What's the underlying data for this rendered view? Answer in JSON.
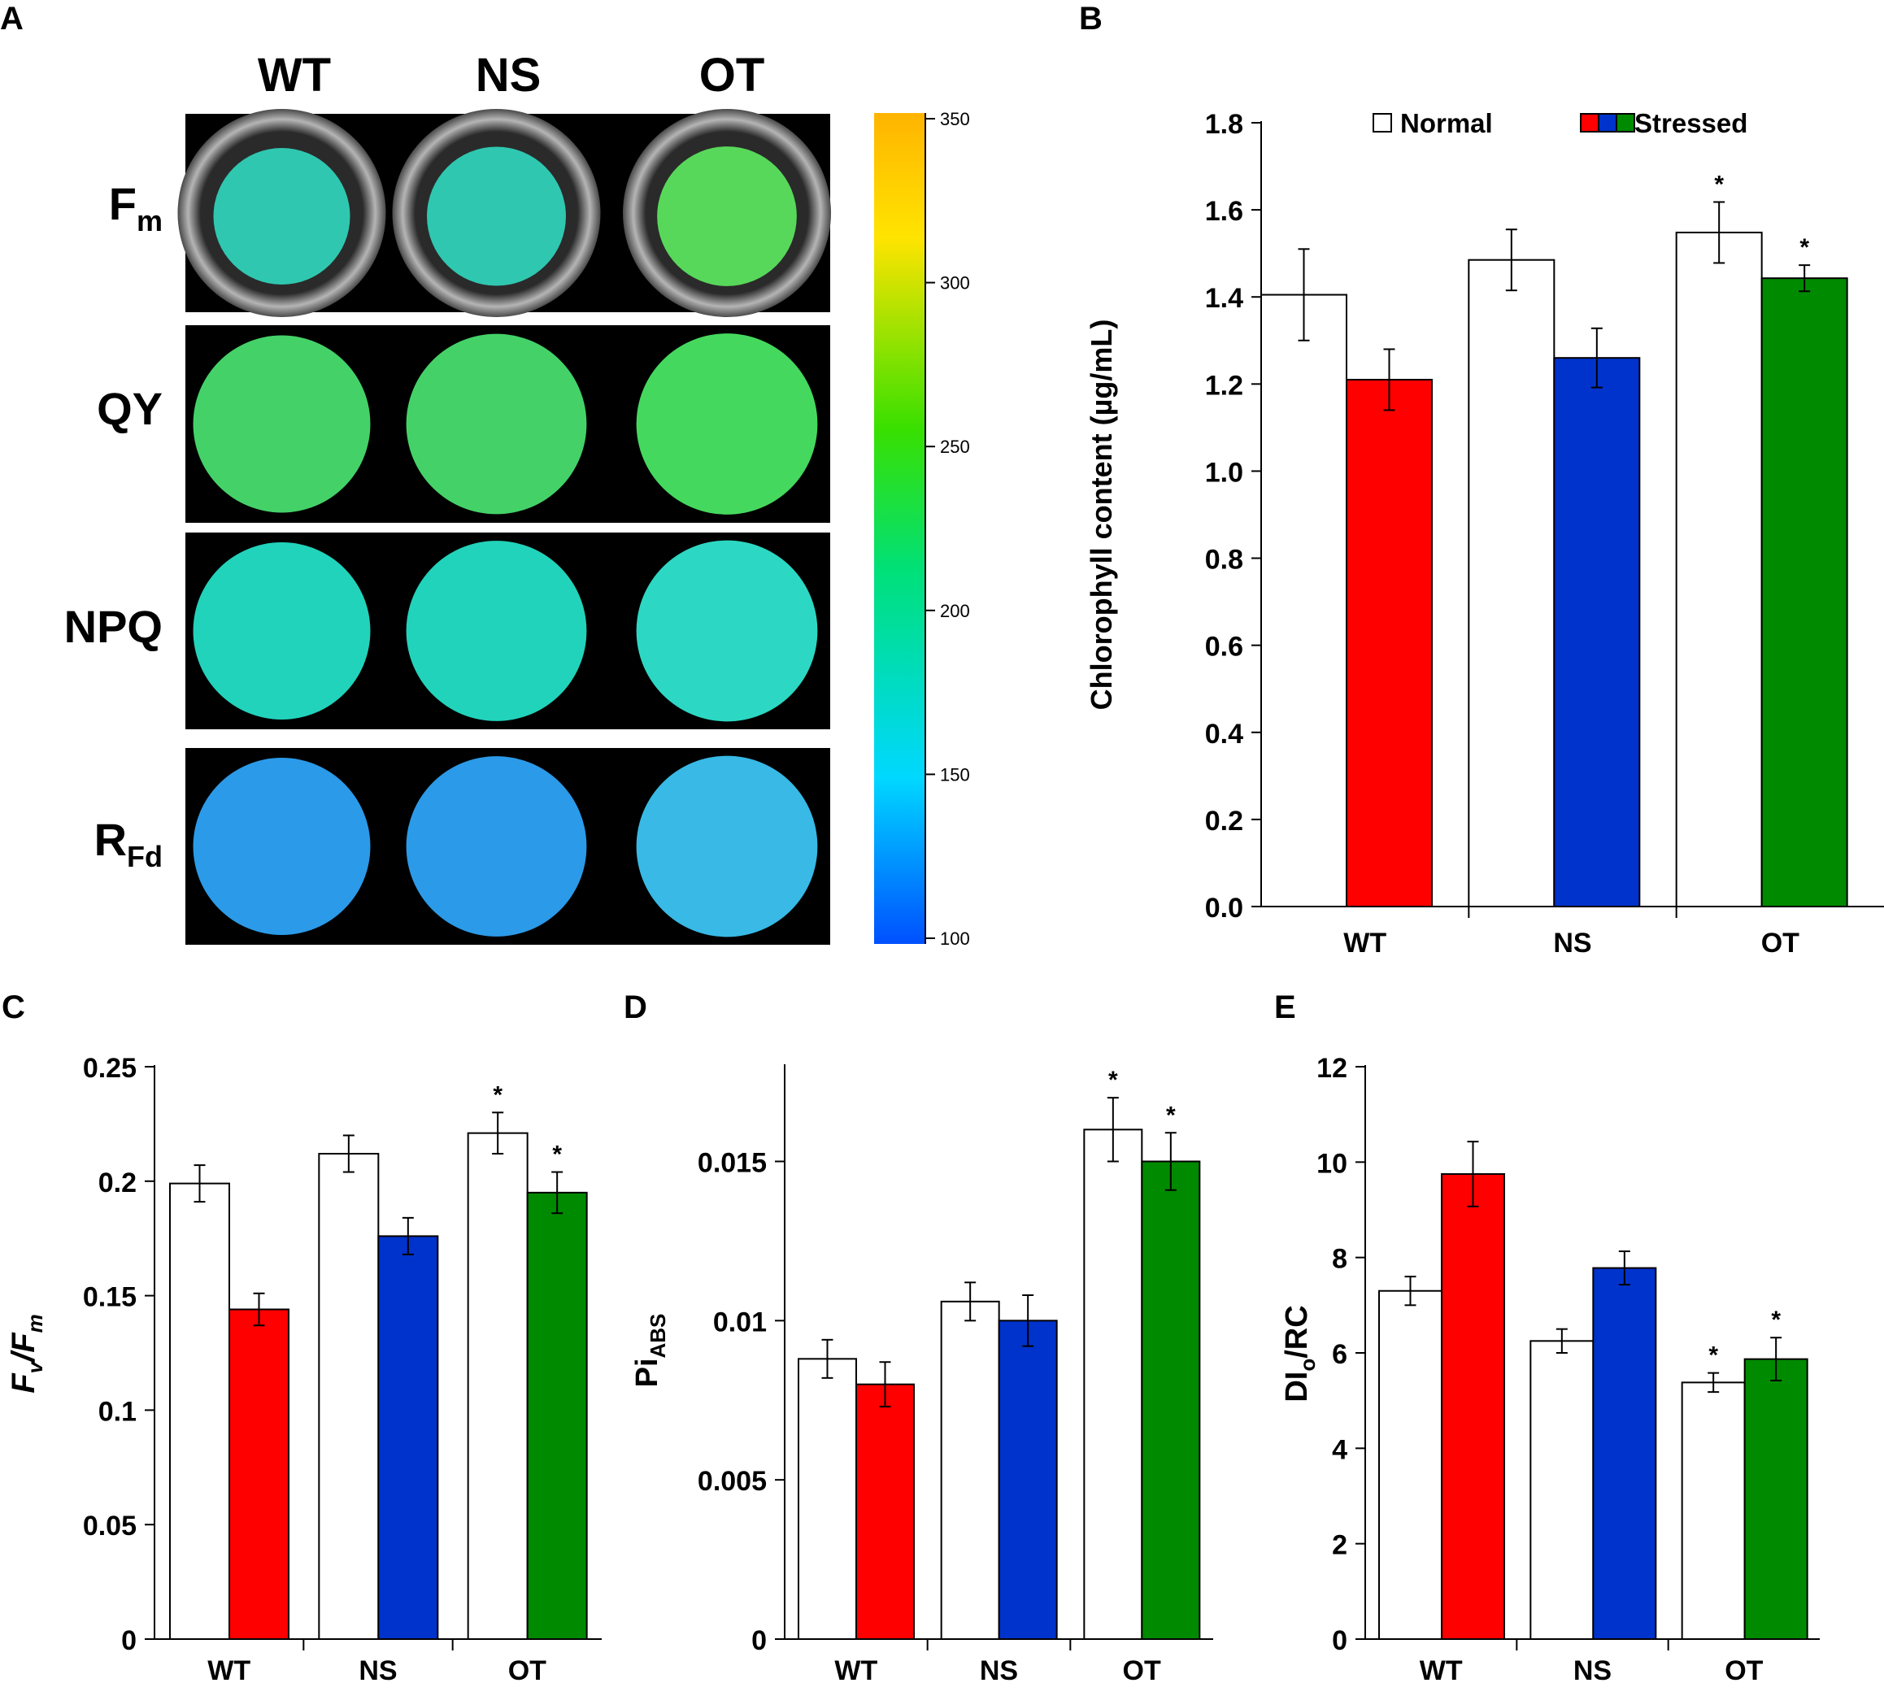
{
  "panel_labels": {
    "a": "A",
    "b": "B",
    "c": "C",
    "d": "D",
    "e": "E"
  },
  "colors": {
    "normal": "#ffffff",
    "wt_stressed": "#ff0000",
    "ns_stressed": "#0033cc",
    "ot_stressed": "#008a00",
    "axis": "#000000",
    "img_bg": "#000000",
    "well_rim": "#8a8a8a"
  },
  "image_panel": {
    "columns": [
      "WT",
      "NS",
      "OT"
    ],
    "rows": [
      {
        "main": "F",
        "sub": "m",
        "fills": [
          "#2fc7b0",
          "#2fc7b0",
          "#58d85a"
        ]
      },
      {
        "main": "QY",
        "sub": "",
        "fills": [
          "#44d268",
          "#44d268",
          "#45d85e"
        ]
      },
      {
        "main": "NPQ",
        "sub": "",
        "fills": [
          "#22d3bb",
          "#22d3bb",
          "#2cd8c3"
        ]
      },
      {
        "main": "R",
        "sub": "Fd",
        "fills": [
          "#2b9ae8",
          "#2b9ae8",
          "#38b9e6"
        ]
      }
    ],
    "colorbar": {
      "ticks": [
        "350",
        "300",
        "250",
        "200",
        "150",
        "100"
      ],
      "min": 100,
      "max": 350,
      "stops": [
        "#0050ff",
        "#00d8ff",
        "#00e078",
        "#39e000",
        "#ffe400",
        "#ffb400"
      ]
    }
  },
  "chart_data": [
    {
      "id": "B",
      "type": "bar",
      "title": "",
      "categories": [
        "WT",
        "NS",
        "OT"
      ],
      "series": [
        {
          "name": "Normal",
          "values": [
            1.405,
            1.485,
            1.548
          ],
          "errors": [
            0.105,
            0.07,
            0.07
          ],
          "sig": [
            false,
            false,
            true
          ]
        },
        {
          "name": "Stressed",
          "values": [
            1.21,
            1.26,
            1.443
          ],
          "errors": [
            0.07,
            0.068,
            0.03
          ],
          "sig": [
            false,
            false,
            true
          ]
        }
      ],
      "ylabel": "Chlorophyll content (µg/mL)",
      "ylim": [
        0,
        1.8
      ],
      "yticks": [
        0,
        0.2,
        0.4,
        0.6,
        0.8,
        1.0,
        1.2,
        1.4,
        1.6,
        1.8
      ],
      "ytick_labels": [
        "0.0",
        "0.2",
        "0.4",
        "0.6",
        "0.8",
        "1.0",
        "1.2",
        "1.4",
        "1.6",
        "1.8"
      ],
      "legend": {
        "normal_label": "Normal",
        "stressed_label": "Stressed",
        "position": "top"
      },
      "significance_mark": "*"
    },
    {
      "id": "C",
      "type": "bar",
      "categories": [
        "WT",
        "NS",
        "OT"
      ],
      "series": [
        {
          "name": "Normal",
          "values": [
            0.199,
            0.212,
            0.221
          ],
          "errors": [
            0.008,
            0.008,
            0.009
          ],
          "sig": [
            false,
            false,
            true
          ]
        },
        {
          "name": "Stressed",
          "values": [
            0.144,
            0.176,
            0.195
          ],
          "errors": [
            0.007,
            0.008,
            0.009
          ],
          "sig": [
            false,
            false,
            true
          ]
        }
      ],
      "ylabel": {
        "main1": "F",
        "sub1": "v",
        "sep": "/",
        "main2": "F",
        "sub2": "m"
      },
      "ylim": [
        0,
        0.25
      ],
      "yticks": [
        0,
        0.05,
        0.1,
        0.15,
        0.2,
        0.25
      ],
      "ytick_labels": [
        "0",
        "0.05",
        "0.1",
        "0.15",
        "0.2",
        "0.25"
      ],
      "significance_mark": "*"
    },
    {
      "id": "D",
      "type": "bar",
      "categories": [
        "WT",
        "NS",
        "OT"
      ],
      "series": [
        {
          "name": "Normal",
          "values": [
            0.0088,
            0.0106,
            0.016
          ],
          "errors": [
            0.0006,
            0.0006,
            0.001
          ],
          "sig": [
            false,
            false,
            true
          ]
        },
        {
          "name": "Stressed",
          "values": [
            0.008,
            0.01,
            0.015
          ],
          "errors": [
            0.0007,
            0.0008,
            0.0009
          ],
          "sig": [
            false,
            false,
            true
          ]
        }
      ],
      "ylabel": {
        "main": "Pi",
        "sub": "ABS"
      },
      "ylim": [
        0,
        0.018
      ],
      "yticks": [
        0,
        0.005,
        0.01,
        0.015
      ],
      "ytick_labels": [
        "0",
        "0.005",
        "0.01",
        "0.015"
      ],
      "significance_mark": "*"
    },
    {
      "id": "E",
      "type": "bar",
      "categories": [
        "WT",
        "NS",
        "OT"
      ],
      "series": [
        {
          "name": "Normal",
          "values": [
            7.3,
            6.25,
            5.38
          ],
          "errors": [
            0.3,
            0.25,
            0.2
          ],
          "sig": [
            false,
            false,
            true
          ]
        },
        {
          "name": "Stressed",
          "values": [
            9.75,
            7.78,
            5.87
          ],
          "errors": [
            0.68,
            0.35,
            0.45
          ],
          "sig": [
            false,
            false,
            true
          ]
        }
      ],
      "ylabel": {
        "main": "DI",
        "sub": "o",
        "rest": "/RC"
      },
      "ylim": [
        0,
        12
      ],
      "yticks": [
        0,
        2,
        4,
        6,
        8,
        10,
        12
      ],
      "ytick_labels": [
        "0",
        "2",
        "4",
        "6",
        "8",
        "10",
        "12"
      ],
      "significance_mark": "*"
    }
  ]
}
